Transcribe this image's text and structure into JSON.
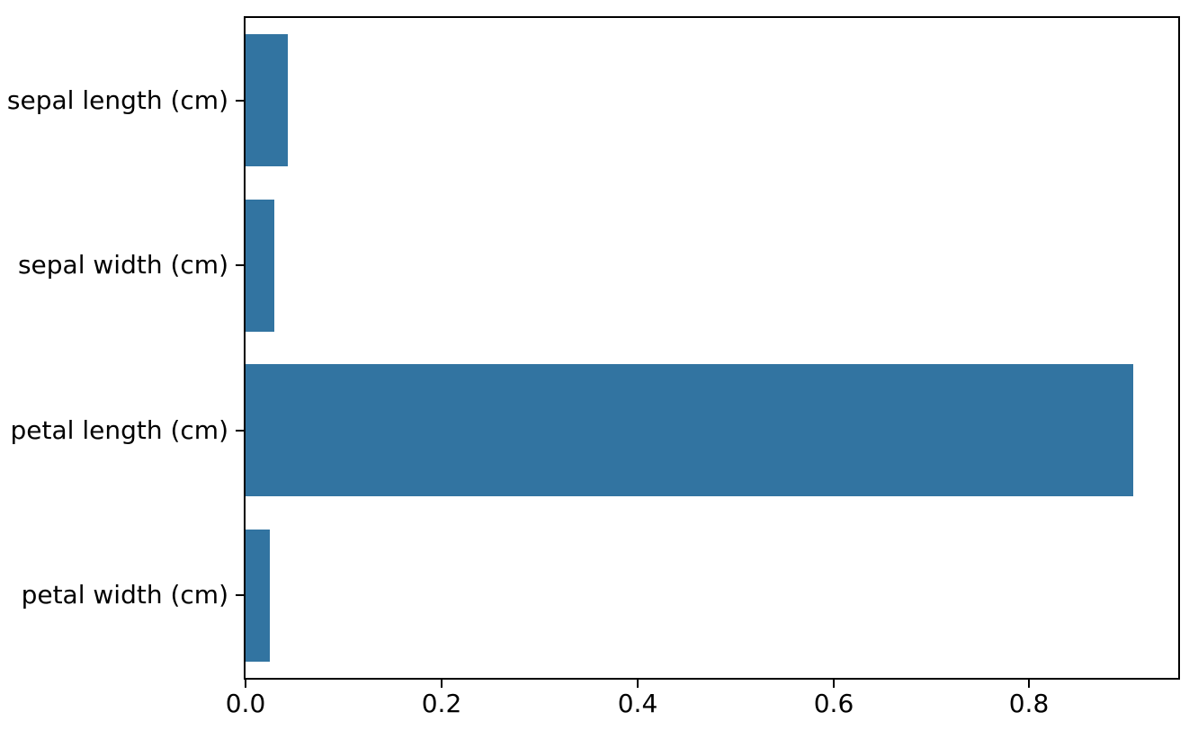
{
  "chart_data": {
    "type": "bar",
    "orientation": "horizontal",
    "title": "",
    "xlabel": "",
    "ylabel": "",
    "categories": [
      "sepal length (cm)",
      "sepal width (cm)",
      "petal length (cm)",
      "petal width (cm)"
    ],
    "values": [
      0.043,
      0.029,
      0.906,
      0.025
    ],
    "xlim": [
      0.0,
      0.952
    ],
    "xticks": [
      0.0,
      0.2,
      0.4,
      0.6,
      0.8
    ],
    "xtick_labels": [
      "0.0",
      "0.2",
      "0.4",
      "0.6",
      "0.8"
    ],
    "grid": false,
    "legend": null,
    "bar_color": "#3274a1",
    "spine_color": "#000000",
    "text_color": "#000000",
    "background_color": "#ffffff"
  }
}
